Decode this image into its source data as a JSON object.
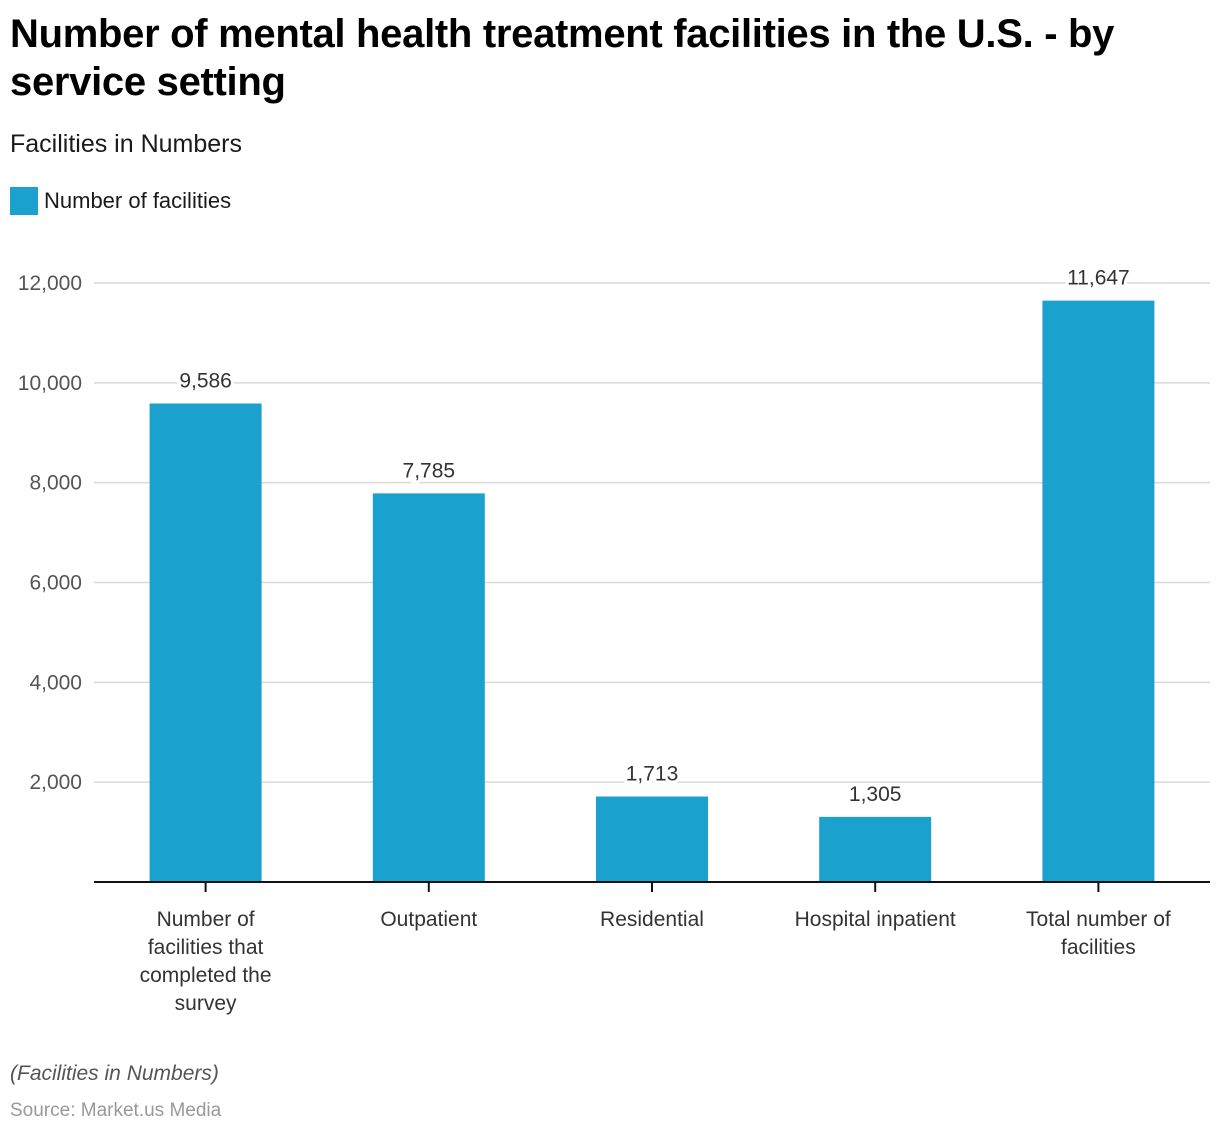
{
  "chart_data": {
    "type": "bar",
    "title": "Number of mental health treatment facilities in the U.S. - by service setting",
    "subtitle": "Facilities in Numbers",
    "legend": [
      {
        "name": "Number of facilities",
        "color": "#1ba1ce"
      }
    ],
    "legend_position": "top-left",
    "categories": [
      "Number of facilities that completed the survey",
      "Outpatient",
      "Residential",
      "Hospital inpatient",
      "Total number of facilities"
    ],
    "category_lines": [
      [
        "Number of",
        "facilities that",
        "completed the",
        "survey"
      ],
      [
        "Outpatient"
      ],
      [
        "Residential"
      ],
      [
        "Hospital inpatient"
      ],
      [
        "Total number of",
        "facilities"
      ]
    ],
    "series": [
      {
        "name": "Number of facilities",
        "values": [
          9586,
          7785,
          1713,
          1305,
          11647
        ],
        "color": "#1ba1ce"
      }
    ],
    "value_labels": [
      "9,586",
      "7,785",
      "1,713",
      "1,305",
      "11,647"
    ],
    "xlabel": "",
    "ylabel": "",
    "ylim": [
      0,
      12000
    ],
    "yticks": [
      2000,
      4000,
      6000,
      8000,
      10000,
      12000
    ],
    "ytick_labels": [
      "2,000",
      "4,000",
      "6,000",
      "8,000",
      "10,000",
      "12,000"
    ],
    "grid": true,
    "note": "(Facilities in Numbers)",
    "source": "Source: Market.us Media"
  }
}
